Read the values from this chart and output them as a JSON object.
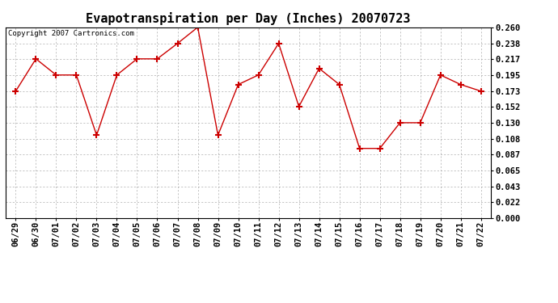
{
  "title": "Evapotranspiration per Day (Inches) 20070723",
  "copyright": "Copyright 2007 Cartronics.com",
  "x_labels": [
    "06/29",
    "06/30",
    "07/01",
    "07/02",
    "07/03",
    "07/04",
    "07/05",
    "07/06",
    "07/07",
    "07/08",
    "07/09",
    "07/10",
    "07/11",
    "07/12",
    "07/13",
    "07/14",
    "07/15",
    "07/16",
    "07/17",
    "07/18",
    "07/19",
    "07/20",
    "07/21",
    "07/22"
  ],
  "y_values": [
    0.173,
    0.217,
    0.195,
    0.195,
    0.113,
    0.195,
    0.217,
    0.217,
    0.238,
    0.26,
    0.113,
    0.182,
    0.195,
    0.238,
    0.152,
    0.204,
    0.182,
    0.095,
    0.095,
    0.13,
    0.13,
    0.195,
    0.182,
    0.173
  ],
  "y_ticks": [
    0.0,
    0.022,
    0.043,
    0.065,
    0.087,
    0.108,
    0.13,
    0.152,
    0.173,
    0.195,
    0.217,
    0.238,
    0.26
  ],
  "ylim": [
    0.0,
    0.26
  ],
  "line_color": "#cc0000",
  "marker": "+",
  "marker_size": 6,
  "background_color": "#ffffff",
  "grid_color": "#aaaaaa",
  "title_fontsize": 11,
  "tick_fontsize": 7.5,
  "copyright_fontsize": 6.5
}
